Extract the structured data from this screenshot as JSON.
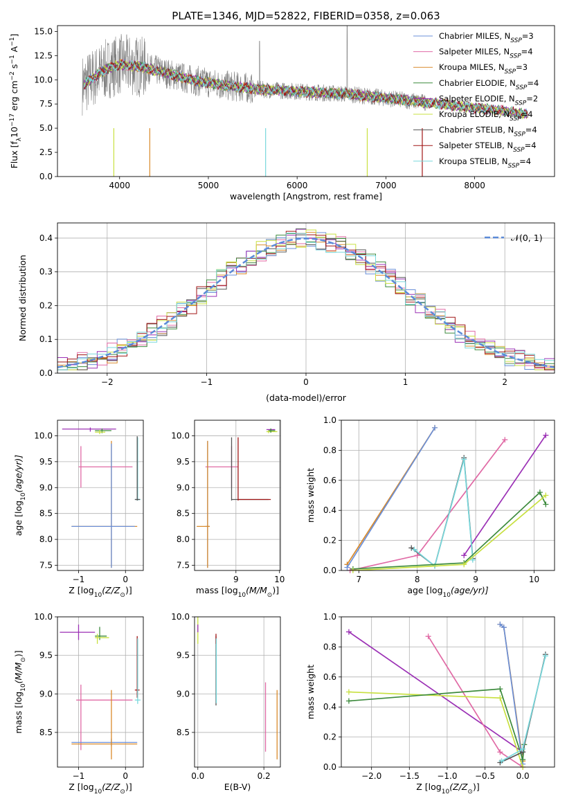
{
  "figure_title": "PLATE=1346, MJD=52822, FIBERID=0358, z=0.063",
  "colors": {
    "Chabrier MILES": "#6a8fd8",
    "Salpeter MILES": "#e06aa5",
    "Kroupa MILES": "#d98a2b",
    "Chabrier ELODIE": "#3c8a3c",
    "Salpeter ELODIE": "#9b30b5",
    "Kroupa ELODIE": "#c8e040",
    "Chabrier STELIB": "#555555",
    "Salpeter STELIB": "#a01515",
    "Kroupa STELIB": "#78d8dc",
    "data": "#808080",
    "normal_curve": "#5b8ad8"
  },
  "chart_data": [
    {
      "id": "spectrum",
      "type": "line",
      "title": "PLATE=1346, MJD=52822, FIBERID=0358, z=0.063",
      "xlabel": "wavelength [Angstrom, rest frame]",
      "ylabel_main": "Flux [f",
      "ylabel_sub1": "λ",
      "ylabel_mid": "10",
      "ylabel_sup1": "−17",
      "ylabel_mid2": " erg cm",
      "ylabel_sup2": "−2",
      "ylabel_mid3": " s",
      "ylabel_sup3": "−1",
      "ylabel_mid4": " A",
      "ylabel_sup4": "−1",
      "ylabel_end": "]",
      "xlim": [
        3300,
        8900
      ],
      "ylim": [
        0,
        15.6
      ],
      "xticks": [
        4000,
        5000,
        6000,
        7000,
        8000
      ],
      "yticks": [
        0.0,
        2.5,
        5.0,
        7.5,
        10.0,
        12.5,
        15.0
      ],
      "ytick_labels": [
        "0.0",
        "2.5",
        "5.0",
        "7.5",
        "10.0",
        "12.5",
        "15.0"
      ],
      "continuum": {
        "x": [
          3600,
          3700,
          3800,
          3900,
          4000,
          4200,
          4400,
          4600,
          4800,
          5000,
          5200,
          5400,
          5600,
          5800,
          6000,
          6200,
          6400,
          6600,
          6800,
          7000,
          7200,
          7400,
          7600,
          7800,
          8000,
          8200,
          8400,
          8600
        ],
        "y": [
          9.5,
          10.2,
          10.8,
          11.3,
          11.6,
          11.4,
          11.0,
          10.5,
          10.0,
          9.7,
          9.4,
          9.2,
          9.0,
          8.9,
          8.8,
          8.7,
          8.6,
          8.5,
          8.3,
          8.1,
          7.9,
          7.7,
          7.5,
          7.3,
          7.1,
          6.9,
          6.7,
          6.4
        ]
      },
      "series": [
        {
          "name": "Chabrier MILES",
          "label": "Chabrier MILES, N",
          "sub": "SSP",
          "tail": "=3"
        },
        {
          "name": "Salpeter MILES",
          "label": "Salpeter MILES, N",
          "sub": "SSP",
          "tail": "=4"
        },
        {
          "name": "Kroupa MILES",
          "label": "Kroupa MILES, N",
          "sub": "SSP",
          "tail": "=3"
        },
        {
          "name": "Chabrier ELODIE",
          "label": "Chabrier ELODIE, N",
          "sub": "SSP",
          "tail": "=4"
        },
        {
          "name": "Salpeter ELODIE",
          "label": "Salpeter ELODIE, N",
          "sub": "SSP",
          "tail": "=2"
        },
        {
          "name": "Kroupa ELODIE",
          "label": "Kroupa ELODIE, N",
          "sub": "SSP",
          "tail": "=4"
        },
        {
          "name": "Chabrier STELIB",
          "label": "Chabrier STELIB, N",
          "sub": "SSP",
          "tail": "=4"
        },
        {
          "name": "Salpeter STELIB",
          "label": "Salpeter STELIB, N",
          "sub": "SSP",
          "tail": "=4"
        },
        {
          "name": "Kroupa STELIB",
          "label": "Kroupa STELIB, N",
          "sub": "SSP",
          "tail": "=4"
        }
      ],
      "legend_placement": "upper right",
      "grid": false
    },
    {
      "id": "residuals",
      "type": "line",
      "xlabel": "(data-model)/error",
      "ylabel": "Normed distribution",
      "xlim": [
        -2.5,
        2.5
      ],
      "ylim": [
        0,
        0.445
      ],
      "xticks": [
        -2,
        -1,
        0,
        1,
        2
      ],
      "xtick_labels": [
        "−2",
        "−1",
        "0",
        "1",
        "2"
      ],
      "yticks": [
        0.0,
        0.1,
        0.2,
        0.3,
        0.4
      ],
      "ytick_labels": [
        "0.0",
        "0.1",
        "0.2",
        "0.3",
        "0.4"
      ],
      "legend": "𝒩(0, 1)",
      "legend_placement": "upper right",
      "grid": true,
      "normal_curve": {
        "mean": 0,
        "sigma": 1
      },
      "bin_edges_start": -2.5,
      "bin_width": 0.1
    },
    {
      "id": "age_vs_Z",
      "type": "scatter",
      "xlabel_pre": "Z [log",
      "xlabel_sub": "10",
      "xlabel_post": "(Z/Z",
      "xlabel_sub2": "⊙",
      "xlabel_end": ")]",
      "ylabel_pre": "age  [log",
      "ylabel_sub": "10",
      "ylabel_post": "(age/yr)]",
      "xlim": [
        -1.45,
        0.38
      ],
      "ylim": [
        7.4,
        10.3
      ],
      "xticks": [
        -1,
        0
      ],
      "xtick_labels": [
        "−1",
        "0"
      ],
      "yticks": [
        7.5,
        8.0,
        8.5,
        9.0,
        9.5,
        10.0
      ],
      "ytick_labels": [
        "7.5",
        "8.0",
        "8.5",
        "9.0",
        "9.5",
        "10.0"
      ],
      "grid": true,
      "crosses": [
        {
          "series": "Salpeter ELODIE",
          "x": -0.75,
          "xerr": [
            0.6,
            0.55
          ],
          "y": 10.13,
          "yerr": [
            0.05,
            0.03
          ]
        },
        {
          "series": "Chabrier ELODIE",
          "x": -0.5,
          "xerr": [
            0.15,
            0.2
          ],
          "y": 10.1,
          "yerr": [
            0.05,
            0.04
          ]
        },
        {
          "series": "Kroupa ELODIE",
          "x": -0.55,
          "xerr": [
            0.1,
            0.12
          ],
          "y": 10.07,
          "yerr": [
            0.04,
            0.04
          ]
        },
        {
          "series": "Salpeter MILES",
          "x": -0.95,
          "xerr": [
            0.05,
            1.1
          ],
          "y": 9.4,
          "yerr": [
            0.4,
            0.4
          ]
        },
        {
          "series": "Kroupa MILES",
          "x": -0.3,
          "xerr": [
            0.85,
            0.55
          ],
          "y": 8.25,
          "yerr": [
            0.8,
            1.65
          ]
        },
        {
          "series": "Chabrier MILES",
          "x": -0.3,
          "xerr": [
            0.85,
            0.5
          ],
          "y": 8.25,
          "yerr": [
            0.8,
            1.6
          ]
        },
        {
          "series": "Kroupa STELIB",
          "x": 0.26,
          "xerr": [
            0.06,
            0.06
          ],
          "y": 8.77,
          "yerr": [
            0.02,
            1.2
          ]
        },
        {
          "series": "Chabrier STELIB",
          "x": 0.25,
          "xerr": [
            0.05,
            0.06
          ],
          "y": 8.77,
          "yerr": [
            0.02,
            1.22
          ]
        }
      ]
    },
    {
      "id": "age_vs_mass",
      "type": "scatter",
      "xlabel_pre": "mass [log",
      "xlabel_sub": "10",
      "xlabel_post": "(M/M",
      "xlabel_sub2": "⊙",
      "xlabel_end": ")]",
      "xlim": [
        8.05,
        10.02
      ],
      "ylim": [
        7.4,
        10.3
      ],
      "xticks": [
        9,
        10
      ],
      "xtick_labels": [
        "9",
        "10"
      ],
      "yticks": [
        7.5,
        8.0,
        8.5,
        9.0,
        9.5,
        10.0
      ],
      "ytick_labels": [
        "7.5",
        "8.0",
        "8.5",
        "9.0",
        "9.5",
        "10.0"
      ],
      "grid": true,
      "crosses": [
        {
          "series": "Salpeter ELODIE",
          "x": 9.8,
          "xerr": [
            0.1,
            0.1
          ],
          "y": 10.12,
          "yerr": [
            0.02,
            0.02
          ]
        },
        {
          "series": "Kroupa ELODIE",
          "x": 9.75,
          "xerr": [
            0.05,
            0.2
          ],
          "y": 10.08,
          "yerr": [
            0.03,
            0.03
          ]
        },
        {
          "series": "Chabrier ELODIE",
          "x": 9.8,
          "xerr": [
            0.05,
            0.1
          ],
          "y": 10.1,
          "yerr": [
            0.04,
            0.04
          ]
        },
        {
          "series": "Salpeter MILES",
          "x": 8.9,
          "xerr": [
            0.6,
            0.15
          ],
          "y": 9.4,
          "yerr": [
            0.4,
            0.4
          ]
        },
        {
          "series": "Chabrier MILES",
          "x": 8.35,
          "xerr": [
            0.05,
            0.05
          ],
          "y": 8.25,
          "yerr": [
            0.8,
            1.65
          ]
        },
        {
          "series": "Kroupa MILES",
          "x": 8.35,
          "xerr": [
            0.25,
            0.05
          ],
          "y": 8.25,
          "yerr": [
            0.8,
            1.65
          ]
        },
        {
          "series": "Chabrier STELIB",
          "x": 8.9,
          "xerr": [
            0.0,
            0.85
          ],
          "y": 8.77,
          "yerr": [
            0.02,
            1.2
          ]
        },
        {
          "series": "Salpeter STELIB",
          "x": 9.05,
          "xerr": [
            0.0,
            0.75
          ],
          "y": 8.77,
          "yerr": [
            0.02,
            1.2
          ]
        }
      ]
    },
    {
      "id": "massweight_vs_age",
      "type": "line",
      "xlabel_pre": "age  [log",
      "xlabel_sub": "10",
      "xlabel_post": "(age/yr)]",
      "ylabel": "mass weight",
      "xlim": [
        6.7,
        10.35
      ],
      "ylim": [
        0,
        1.0
      ],
      "xticks": [
        7,
        8,
        9,
        10
      ],
      "xtick_labels": [
        "7",
        "8",
        "9",
        "10"
      ],
      "yticks": [
        0.0,
        0.2,
        0.4,
        0.6,
        0.8,
        1.0
      ],
      "ytick_labels": [
        "0.0",
        "0.2",
        "0.4",
        "0.6",
        "0.8",
        "1.0"
      ],
      "grid": true,
      "series": [
        {
          "name": "Kroupa MILES",
          "x": [
            6.8,
            8.3
          ],
          "y": [
            0.04,
            0.95
          ]
        },
        {
          "name": "Chabrier MILES",
          "x": [
            6.8,
            8.3
          ],
          "y": [
            0.02,
            0.95
          ]
        },
        {
          "name": "Salpeter MILES",
          "x": [
            6.85,
            8.0,
            9.5
          ],
          "y": [
            0.0,
            0.1,
            0.87
          ]
        },
        {
          "name": "Salpeter ELODIE",
          "x": [
            8.8,
            10.2
          ],
          "y": [
            0.1,
            0.9
          ]
        },
        {
          "name": "Chabrier STELIB",
          "x": [
            7.9,
            8.3,
            8.8,
            8.95
          ],
          "y": [
            0.15,
            0.03,
            0.75,
            0.08
          ]
        },
        {
          "name": "Kroupa STELIB",
          "x": [
            7.95,
            8.3,
            8.8,
            8.95
          ],
          "y": [
            0.14,
            0.03,
            0.74,
            0.07
          ]
        },
        {
          "name": "Chabrier ELODIE",
          "x": [
            6.9,
            8.8,
            10.1,
            10.2
          ],
          "y": [
            0.01,
            0.05,
            0.52,
            0.44
          ]
        },
        {
          "name": "Kroupa ELODIE",
          "x": [
            6.9,
            8.8,
            10.2
          ],
          "y": [
            0.0,
            0.04,
            0.5
          ]
        }
      ]
    },
    {
      "id": "mass_vs_Z",
      "type": "scatter",
      "xlabel_pre": "Z [log",
      "xlabel_sub": "10",
      "xlabel_post": "(Z/Z",
      "xlabel_sub2": "⊙",
      "xlabel_end": ")]",
      "ylabel_pre": "mass [log",
      "ylabel_sub": "10",
      "ylabel_post": "(M/M",
      "ylabel_sub2": "⊙",
      "ylabel_end": ")]",
      "xlim": [
        -1.45,
        0.38
      ],
      "ylim": [
        8.05,
        10.0
      ],
      "xticks": [
        -1,
        0
      ],
      "xtick_labels": [
        "−1",
        "0"
      ],
      "yticks": [
        8.5,
        9.0,
        9.5,
        10.0
      ],
      "ytick_labels": [
        "8.5",
        "9.0",
        "9.5",
        "10.0"
      ],
      "grid": true,
      "crosses": [
        {
          "series": "Salpeter ELODIE",
          "x": -1.0,
          "xerr": [
            0.4,
            0.35
          ],
          "y": 9.8,
          "yerr": [
            0.1,
            0.1
          ]
        },
        {
          "series": "Chabrier ELODIE",
          "x": -0.55,
          "xerr": [
            0.1,
            0.15
          ],
          "y": 9.75,
          "yerr": [
            0.05,
            0.12
          ]
        },
        {
          "series": "Kroupa ELODIE",
          "x": -0.6,
          "xerr": [
            0.05,
            0.25
          ],
          "y": 9.73,
          "yerr": [
            0.08,
            0.05
          ]
        },
        {
          "series": "Salpeter MILES",
          "x": -0.95,
          "xerr": [
            0.1,
            1.1
          ],
          "y": 8.92,
          "yerr": [
            0.65,
            0.2
          ]
        },
        {
          "series": "Chabrier MILES",
          "x": -0.3,
          "xerr": [
            0.85,
            0.55
          ],
          "y": 8.37,
          "yerr": [
            0.05,
            0.05
          ]
        },
        {
          "series": "Kroupa MILES",
          "x": -0.3,
          "xerr": [
            0.85,
            0.55
          ],
          "y": 8.35,
          "yerr": [
            0.2,
            0.7
          ]
        },
        {
          "series": "Salpeter STELIB",
          "x": 0.25,
          "xerr": [
            0.05,
            0.05
          ],
          "y": 9.05,
          "yerr": [
            0.1,
            0.7
          ]
        },
        {
          "series": "Kroupa STELIB",
          "x": 0.26,
          "xerr": [
            0.06,
            0.06
          ],
          "y": 8.92,
          "yerr": [
            0.05,
            0.8
          ]
        }
      ]
    },
    {
      "id": "mass_vs_EBV",
      "type": "scatter",
      "xlabel": "E(B-V)",
      "xlim": [
        -0.01,
        0.25
      ],
      "ylim": [
        8.05,
        10.0
      ],
      "xticks": [
        0.0,
        0.2
      ],
      "xtick_labels": [
        "0.0",
        "0.2"
      ],
      "yticks": [
        8.5,
        9.0,
        9.5,
        10.0
      ],
      "ytick_labels": [
        "8.5",
        "9.0",
        "9.5",
        "10.0"
      ],
      "grid": true,
      "crosses": [
        {
          "series": "Kroupa ELODIE",
          "x": 0.0,
          "xerr": [
            0.0,
            0.0
          ],
          "y": 9.8,
          "yerr": [
            0.15,
            0.2
          ]
        },
        {
          "series": "Salpeter ELODIE",
          "x": 0.0,
          "xerr": [
            0.0,
            0.0
          ],
          "y": 9.85,
          "yerr": [
            0.05,
            0.05
          ]
        },
        {
          "series": "Chabrier STELIB",
          "x": 0.055,
          "xerr": [
            0.0,
            0.0
          ],
          "y": 9.3,
          "yerr": [
            0.45,
            0.45
          ]
        },
        {
          "series": "Salpeter STELIB",
          "x": 0.055,
          "xerr": [
            0.0,
            0.0
          ],
          "y": 9.7,
          "yerr": [
            0.05,
            0.08
          ]
        },
        {
          "series": "Kroupa STELIB",
          "x": 0.056,
          "xerr": [
            0.0,
            0.0
          ],
          "y": 9.3,
          "yerr": [
            0.42,
            0.42
          ]
        },
        {
          "series": "Salpeter MILES",
          "x": 0.205,
          "xerr": [
            0.0,
            0.0
          ],
          "y": 8.7,
          "yerr": [
            0.45,
            0.45
          ]
        },
        {
          "series": "Kroupa MILES",
          "x": 0.24,
          "xerr": [
            0.0,
            0.0
          ],
          "y": 8.6,
          "yerr": [
            0.45,
            0.45
          ]
        }
      ]
    },
    {
      "id": "massweight_vs_Z",
      "type": "line",
      "xlabel_pre": "Z [log",
      "xlabel_sub": "10",
      "xlabel_post": "(Z/Z",
      "xlabel_sub2": "⊙",
      "xlabel_end": ")]",
      "ylabel": "mass weight",
      "xlim": [
        -2.4,
        0.42
      ],
      "ylim": [
        0,
        1.0
      ],
      "xticks": [
        -2.0,
        -1.5,
        -1.0,
        -0.5,
        0.0
      ],
      "xtick_labels": [
        "−2.0",
        "−1.5",
        "−1.0",
        "−0.5",
        "0.0"
      ],
      "yticks": [
        0.0,
        0.2,
        0.4,
        0.6,
        0.8,
        1.0
      ],
      "ytick_labels": [
        "0.0",
        "0.2",
        "0.4",
        "0.6",
        "0.8",
        "1.0"
      ],
      "grid": true,
      "series": [
        {
          "name": "Salpeter ELODIE",
          "x": [
            -2.3,
            0.0
          ],
          "y": [
            0.9,
            0.1
          ]
        },
        {
          "name": "Salpeter MILES",
          "x": [
            -1.25,
            -0.3,
            0.0
          ],
          "y": [
            0.87,
            0.1,
            0.0
          ]
        },
        {
          "name": "Kroupa MILES",
          "x": [
            -0.3,
            -0.25,
            0.0
          ],
          "y": [
            0.95,
            0.93,
            0.04
          ]
        },
        {
          "name": "Chabrier MILES",
          "x": [
            -0.3,
            -0.25,
            0.0
          ],
          "y": [
            0.95,
            0.93,
            0.02
          ]
        },
        {
          "name": "Kroupa ELODIE",
          "x": [
            -2.3,
            -0.3,
            0.0
          ],
          "y": [
            0.5,
            0.46,
            0.0
          ]
        },
        {
          "name": "Chabrier ELODIE",
          "x": [
            -2.3,
            -0.3,
            0.0,
            0.02
          ],
          "y": [
            0.44,
            0.52,
            0.05,
            0.15
          ]
        },
        {
          "name": "Chabrier STELIB",
          "x": [
            -0.3,
            0.0,
            0.3
          ],
          "y": [
            0.03,
            0.1,
            0.75
          ]
        },
        {
          "name": "Kroupa STELIB",
          "x": [
            -0.28,
            0.0,
            0.3
          ],
          "y": [
            0.04,
            0.12,
            0.74
          ]
        }
      ]
    }
  ]
}
